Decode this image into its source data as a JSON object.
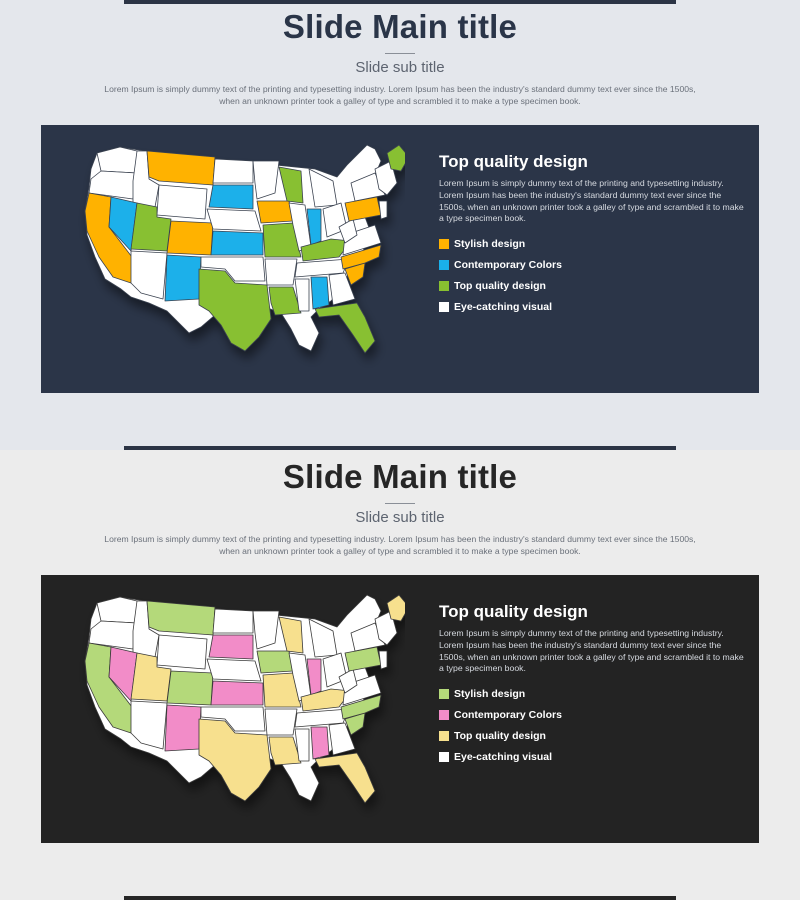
{
  "slides": [
    {
      "main_title": "Slide Main title",
      "sub_title": "Slide sub title",
      "intro_line1": "Lorem Ipsum is simply dummy text of the printing and typesetting industry. Lorem Ipsum has been the industry's standard dummy text ever since the 1500s,",
      "intro_line2": "when an unknown printer took a galley of type and scrambled it to make a type specimen book.",
      "panel_heading": "Top quality design",
      "panel_text": "Lorem Ipsum is simply dummy text of the printing and typesetting industry. Lorem Ipsum has been the industry's standard dummy text ever since the 1500s, when an unknown printer took a galley of type and scrambled it to make a type specimen book.",
      "colors": {
        "background": "#e4e7ec",
        "panel": "#2b3548",
        "accent1": "#ffb200",
        "accent2": "#1ab0ea",
        "accent3": "#88c030",
        "accent4": "#ffffff"
      },
      "legend": [
        {
          "label": "Stylish design",
          "color": "#ffb200"
        },
        {
          "label": "Contemporary Colors",
          "color": "#1ab0ea"
        },
        {
          "label": "Top quality design",
          "color": "#88c030"
        },
        {
          "label": "Eye-catching visual",
          "color": "#ffffff"
        }
      ]
    },
    {
      "main_title": "Slide Main title",
      "sub_title": "Slide sub title",
      "intro_line1": "Lorem Ipsum is simply dummy text of the printing and typesetting industry. Lorem Ipsum has been the industry's standard dummy text ever since the 1500s,",
      "intro_line2": "when an unknown printer took a galley of type and scrambled it to make a type specimen book.",
      "panel_heading": "Top quality design",
      "panel_text": "Lorem Ipsum is simply dummy text of the printing and typesetting industry. Lorem Ipsum has been the industry's standard dummy text ever since the 1500s, when an unknown printer took a galley of type and scrambled it to make a type specimen book.",
      "colors": {
        "background": "#ececec",
        "panel": "#232323",
        "accent1": "#b4d97a",
        "accent2": "#f28cc8",
        "accent3": "#f7e08e",
        "accent4": "#ffffff"
      },
      "legend": [
        {
          "label": "Stylish design",
          "color": "#b4d97a"
        },
        {
          "label": "Contemporary Colors",
          "color": "#f28cc8"
        },
        {
          "label": "Top quality design",
          "color": "#f7e08e"
        },
        {
          "label": "Eye-catching visual",
          "color": "#ffffff"
        }
      ]
    }
  ]
}
